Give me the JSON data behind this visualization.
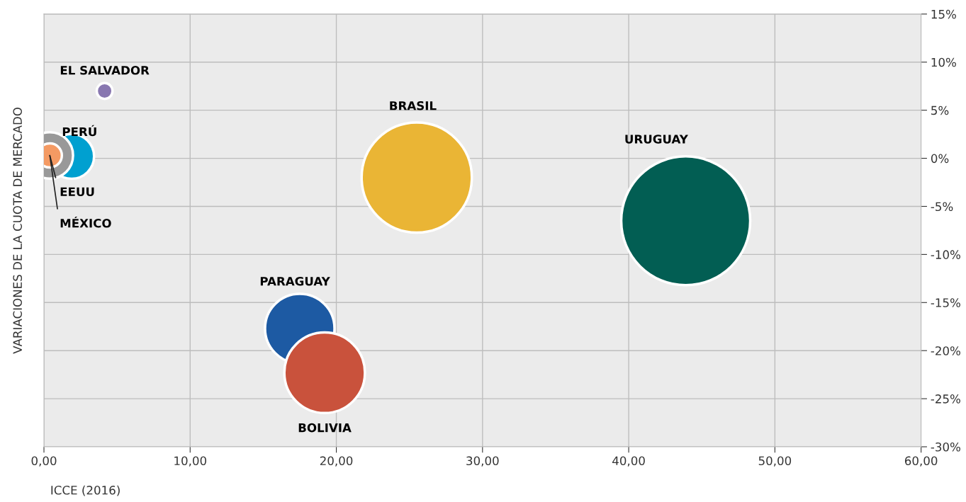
{
  "chart_data": {
    "type": "bubble",
    "xlabel": "ICCE (2016)",
    "ylabel": "VARIACIONES DE LA CUOTA DE MERCADO",
    "series": [
      {
        "name": "EL SALVADOR",
        "color": "#8877b0",
        "x": [
          4.15
        ],
        "values": [
          7.0
        ],
        "sizes": [
          0.015
        ]
      },
      {
        "name": "PERÚ",
        "color": "#00a0d0",
        "x": [
          1.9
        ],
        "values": [
          0.2
        ],
        "sizes": [
          0.12
        ]
      },
      {
        "name": "MÉXICO",
        "color": "#999999",
        "x": [
          0.4
        ],
        "values": [
          0.3
        ],
        "sizes": [
          0.13
        ]
      },
      {
        "name": "EEUU",
        "color": "#f49a63",
        "x": [
          0.4
        ],
        "values": [
          0.3
        ],
        "sizes": [
          0.035
        ]
      },
      {
        "name": "BRASIL",
        "color": "#eab535",
        "x": [
          25.5
        ],
        "values": [
          -2.0
        ],
        "sizes": [
          0.73
        ]
      },
      {
        "name": "URUGUAY",
        "color": "#025e53",
        "x": [
          43.9
        ],
        "values": [
          -6.5
        ],
        "sizes": [
          1
        ]
      },
      {
        "name": "PARAGUAY",
        "color": "#1d5aa3",
        "x": [
          17.5
        ],
        "values": [
          -17.7
        ],
        "sizes": [
          0.29
        ]
      },
      {
        "name": "BOLIVIA",
        "color": "#c9523c",
        "x": [
          19.2
        ],
        "values": [
          -22.3
        ],
        "sizes": [
          0.39
        ]
      }
    ],
    "xlim": [
      0,
      60
    ],
    "ylim": [
      -30,
      15
    ],
    "xticks": [
      {
        "value": 0,
        "label": "0,00"
      },
      {
        "value": 10,
        "label": "10,00"
      },
      {
        "value": 20,
        "label": "20,00"
      },
      {
        "value": 30,
        "label": "30,00"
      },
      {
        "value": 40,
        "label": "40,00"
      },
      {
        "value": 50,
        "label": "50,00"
      },
      {
        "value": 60,
        "label": "60,00"
      }
    ],
    "yticks": [
      {
        "value": -30,
        "label": "-30%"
      },
      {
        "value": -25,
        "label": "-25%"
      },
      {
        "value": -20,
        "label": "-20%"
      },
      {
        "value": -15,
        "label": "-15%"
      },
      {
        "value": -10,
        "label": "-10%"
      },
      {
        "value": -5,
        "label": "-5%"
      },
      {
        "value": 0,
        "label": "0%"
      },
      {
        "value": 5,
        "label": "5%"
      },
      {
        "value": 10,
        "label": "10%"
      },
      {
        "value": 15,
        "label": "15%"
      }
    ],
    "grid": true
  }
}
